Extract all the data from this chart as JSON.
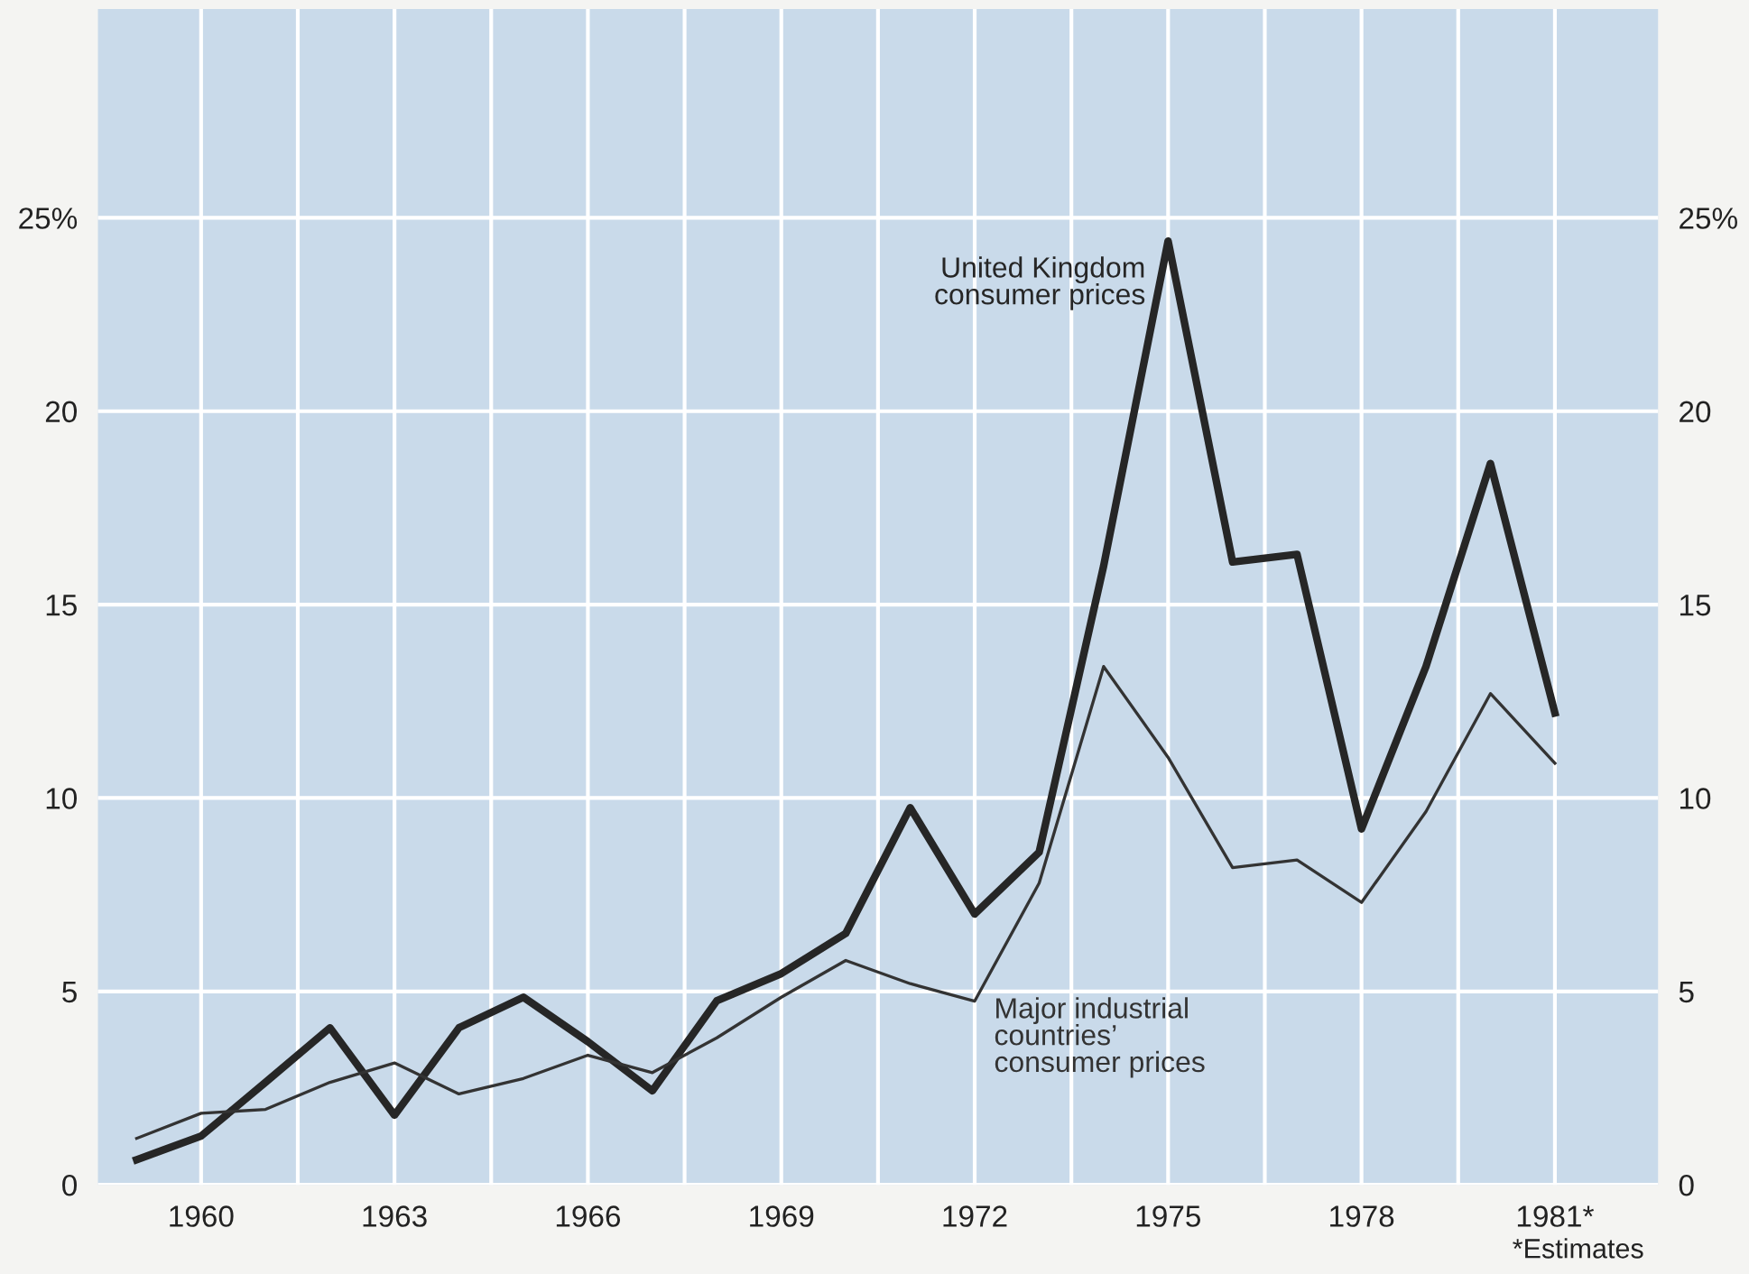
{
  "chart_data": {
    "type": "line",
    "x": [
      1959,
      1960,
      1961,
      1962,
      1963,
      1964,
      1965,
      1966,
      1967,
      1968,
      1969,
      1970,
      1971,
      1972,
      1973,
      1974,
      1975,
      1976,
      1977,
      1978,
      1979,
      1980,
      1981
    ],
    "series": [
      {
        "name": "United Kingdom\nconsumer prices",
        "color": "#262626",
        "values": [
          0.65,
          1.26,
          2.65,
          4.06,
          1.8,
          4.06,
          4.85,
          3.7,
          2.43,
          4.76,
          5.46,
          6.5,
          9.75,
          7.0,
          8.6,
          16.0,
          24.4,
          16.1,
          16.3,
          9.2,
          13.4,
          18.65,
          12.2
        ]
      },
      {
        "name": "Major industrial\ncountries’\nconsumer prices",
        "color": "#333333",
        "values": [
          1.2,
          1.85,
          1.95,
          2.65,
          3.15,
          2.35,
          2.75,
          3.35,
          2.9,
          3.8,
          4.85,
          5.8,
          5.2,
          4.75,
          7.8,
          13.4,
          11.05,
          8.2,
          8.4,
          7.3,
          9.65,
          12.7,
          10.9
        ]
      }
    ],
    "xlim": [
      1958.4,
      1982.6
    ],
    "xticks": [
      1960,
      {
        "value": 1961.5,
        "label": null
      },
      1963,
      {
        "value": 1964.5,
        "label": null
      },
      1966,
      {
        "value": 1967.5,
        "label": null
      },
      1969,
      {
        "value": 1970.5,
        "label": null
      },
      1972,
      {
        "value": 1973.5,
        "label": null
      },
      1975,
      {
        "value": 1976.5,
        "label": null
      },
      1978,
      {
        "value": 1979.5,
        "label": null
      },
      {
        "value": 1981,
        "label": "1981*"
      }
    ],
    "ylim": [
      0,
      30.4
    ],
    "yticks": [
      0,
      5,
      10,
      15,
      20,
      {
        "value": 25,
        "label": "25%"
      }
    ],
    "y2lim": [
      0,
      30.4
    ],
    "y2ticks": [
      0,
      5,
      10,
      15,
      20,
      {
        "value": 25,
        "label": "25%"
      }
    ],
    "grid": true,
    "legend": false,
    "marker": "none",
    "annotations": [
      "*Estimates"
    ]
  }
}
